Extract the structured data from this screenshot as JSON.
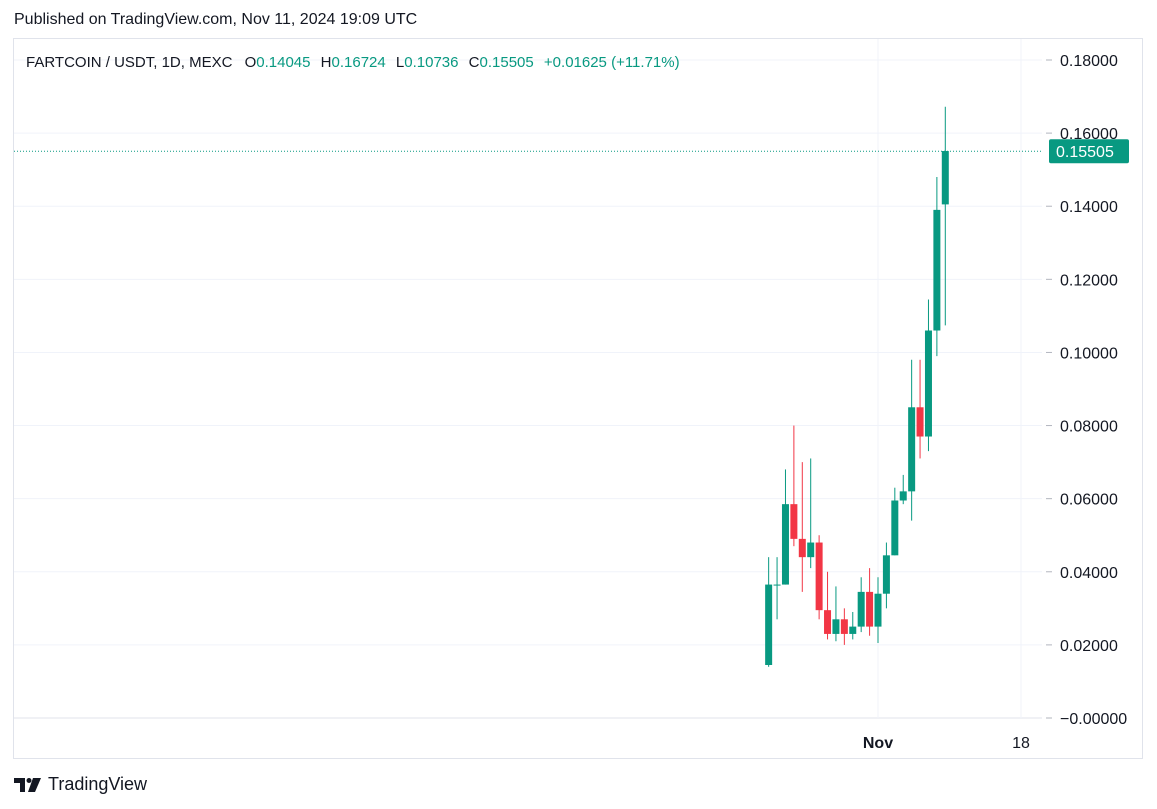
{
  "published": "Published on TradingView.com, Nov 11, 2024 19:09 UTC",
  "footer": {
    "brand": "TradingView",
    "logo_icon": "tradingview-logo-icon"
  },
  "chart_data": {
    "type": "candlestick",
    "symbol": "FARTCOIN / USDT, 1D, MEXC",
    "ohlc_label": {
      "o_key": "O",
      "o": "0.14045",
      "h_key": "H",
      "h": "0.16724",
      "l_key": "L",
      "l": "0.10736",
      "c_key": "C",
      "c": "0.15505",
      "change": "+0.01625 (+11.71%)"
    },
    "last_price_label": "0.15505",
    "last_price": 0.15505,
    "ylim": [
      0,
      0.18
    ],
    "y_ticks": [
      {
        "value": 0.18,
        "label": "0.18000"
      },
      {
        "value": 0.16,
        "label": "0.16000"
      },
      {
        "value": 0.14,
        "label": "0.14000"
      },
      {
        "value": 0.12,
        "label": "0.12000"
      },
      {
        "value": 0.1,
        "label": "0.10000"
      },
      {
        "value": 0.08,
        "label": "0.08000"
      },
      {
        "value": 0.06,
        "label": "0.06000"
      },
      {
        "value": 0.04,
        "label": "0.04000"
      },
      {
        "value": 0.02,
        "label": "0.02000"
      },
      {
        "value": 0.0,
        "label": "−0.00000"
      }
    ],
    "x_ticks": [
      {
        "date": "2024-11-01",
        "label": "Nov",
        "bold": true
      },
      {
        "date": "2024-11-18",
        "label": "18",
        "bold": false
      }
    ],
    "grid": true,
    "up_color": "#089981",
    "down_color": "#f23645",
    "candles": [
      {
        "date": "2024-10-19",
        "o": 0.0145,
        "h": 0.044,
        "l": 0.014,
        "c": 0.0365
      },
      {
        "date": "2024-10-20",
        "o": 0.0365,
        "h": 0.044,
        "l": 0.027,
        "c": 0.0365
      },
      {
        "date": "2024-10-21",
        "o": 0.0365,
        "h": 0.068,
        "l": 0.0365,
        "c": 0.0585
      },
      {
        "date": "2024-10-22",
        "o": 0.0585,
        "h": 0.08,
        "l": 0.047,
        "c": 0.049
      },
      {
        "date": "2024-10-23",
        "o": 0.049,
        "h": 0.07,
        "l": 0.0345,
        "c": 0.044
      },
      {
        "date": "2024-10-24",
        "o": 0.044,
        "h": 0.071,
        "l": 0.041,
        "c": 0.048
      },
      {
        "date": "2024-10-25",
        "o": 0.048,
        "h": 0.05,
        "l": 0.027,
        "c": 0.0295
      },
      {
        "date": "2024-10-26",
        "o": 0.0295,
        "h": 0.04,
        "l": 0.0215,
        "c": 0.023
      },
      {
        "date": "2024-10-27",
        "o": 0.023,
        "h": 0.036,
        "l": 0.021,
        "c": 0.027
      },
      {
        "date": "2024-10-28",
        "o": 0.027,
        "h": 0.03,
        "l": 0.02,
        "c": 0.023
      },
      {
        "date": "2024-10-29",
        "o": 0.023,
        "h": 0.029,
        "l": 0.0215,
        "c": 0.025
      },
      {
        "date": "2024-10-30",
        "o": 0.025,
        "h": 0.0385,
        "l": 0.0235,
        "c": 0.0345
      },
      {
        "date": "2024-10-31",
        "o": 0.0345,
        "h": 0.041,
        "l": 0.0225,
        "c": 0.025
      },
      {
        "date": "2024-11-01",
        "o": 0.025,
        "h": 0.0385,
        "l": 0.0205,
        "c": 0.034
      },
      {
        "date": "2024-11-02",
        "o": 0.034,
        "h": 0.048,
        "l": 0.03,
        "c": 0.0445
      },
      {
        "date": "2024-11-03",
        "o": 0.0445,
        "h": 0.063,
        "l": 0.0445,
        "c": 0.0595
      },
      {
        "date": "2024-11-04",
        "o": 0.0595,
        "h": 0.0665,
        "l": 0.0585,
        "c": 0.062
      },
      {
        "date": "2024-11-05",
        "o": 0.062,
        "h": 0.098,
        "l": 0.054,
        "c": 0.085
      },
      {
        "date": "2024-11-06",
        "o": 0.085,
        "h": 0.098,
        "l": 0.071,
        "c": 0.077
      },
      {
        "date": "2024-11-07",
        "o": 0.077,
        "h": 0.1145,
        "l": 0.073,
        "c": 0.106
      },
      {
        "date": "2024-11-08",
        "o": 0.106,
        "h": 0.148,
        "l": 0.099,
        "c": 0.139
      },
      {
        "date": "2024-11-09",
        "o": 0.1405,
        "h": 0.1672,
        "l": 0.1074,
        "c": 0.1551
      }
    ]
  }
}
